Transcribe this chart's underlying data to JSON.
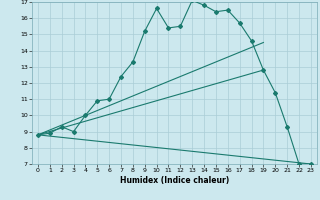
{
  "title": "",
  "xlabel": "Humidex (Indice chaleur)",
  "bg_color": "#cce8ee",
  "grid_color": "#aacdd6",
  "line_color": "#1a7a6e",
  "xlim": [
    -0.5,
    23.5
  ],
  "ylim": [
    7,
    17
  ],
  "xticks": [
    0,
    1,
    2,
    3,
    4,
    5,
    6,
    7,
    8,
    9,
    10,
    11,
    12,
    13,
    14,
    15,
    16,
    17,
    18,
    19,
    20,
    21,
    22,
    23
  ],
  "yticks": [
    7,
    8,
    9,
    10,
    11,
    12,
    13,
    14,
    15,
    16,
    17
  ],
  "series1_x": [
    0,
    1,
    2,
    3,
    4,
    5,
    6,
    7,
    8,
    9,
    10,
    11,
    12,
    13,
    14,
    15,
    16,
    17,
    18,
    19,
    20,
    21,
    22,
    23
  ],
  "series1_y": [
    8.8,
    8.9,
    9.3,
    9.0,
    10.0,
    10.9,
    11.0,
    12.4,
    13.3,
    15.2,
    16.6,
    15.4,
    15.5,
    17.1,
    16.8,
    16.4,
    16.5,
    15.7,
    14.6,
    12.8,
    11.4,
    9.3,
    7.0,
    7.0
  ],
  "series2_x": [
    0,
    19
  ],
  "series2_y": [
    8.8,
    14.5
  ],
  "series3_x": [
    0,
    19
  ],
  "series3_y": [
    8.8,
    12.8
  ],
  "series4_x": [
    0,
    23
  ],
  "series4_y": [
    8.8,
    7.0
  ]
}
